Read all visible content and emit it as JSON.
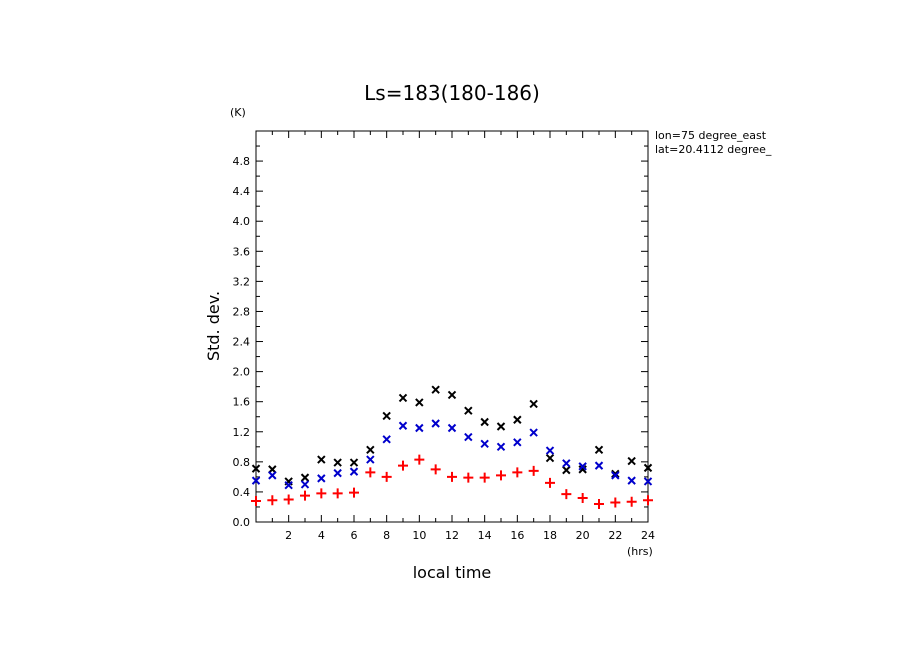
{
  "chart_data": {
    "type": "scatter",
    "title": "Ls=183(180-186)",
    "xlabel": "local time",
    "ylabel": "Std. dev.",
    "x_unit": "(hrs)",
    "y_unit": "(K)",
    "xlim": [
      0,
      24
    ],
    "ylim": [
      0,
      5.2
    ],
    "grid": false,
    "x_tick_labels": [
      "2",
      "4",
      "6",
      "8",
      "10",
      "12",
      "14",
      "16",
      "18",
      "20",
      "22",
      "24"
    ],
    "y_tick_labels": [
      "0.0",
      "0.4",
      "0.8",
      "1.2",
      "1.6",
      "2.0",
      "2.4",
      "2.8",
      "3.2",
      "3.6",
      "4.0",
      "4.4",
      "4.8"
    ],
    "annotations": [
      "lon=75 degree_east",
      "lat=20.4112 degree_"
    ],
    "x": [
      0,
      1,
      2,
      3,
      4,
      5,
      6,
      7,
      8,
      9,
      10,
      11,
      12,
      13,
      14,
      15,
      16,
      17,
      18,
      19,
      20,
      21,
      22,
      23,
      24
    ],
    "series": [
      {
        "color": "#000000",
        "marker": "x",
        "values": [
          0.71,
          0.7,
          0.54,
          0.59,
          0.83,
          0.79,
          0.79,
          0.96,
          1.41,
          1.65,
          1.59,
          1.76,
          1.69,
          1.48,
          1.33,
          1.27,
          1.36,
          1.57,
          0.85,
          0.69,
          0.7,
          0.96,
          0.64,
          0.81,
          0.72
        ]
      },
      {
        "color": "#0000cc",
        "marker": "x",
        "values": [
          0.55,
          0.62,
          0.49,
          0.5,
          0.58,
          0.65,
          0.67,
          0.83,
          1.1,
          1.28,
          1.25,
          1.31,
          1.25,
          1.13,
          1.04,
          1.0,
          1.06,
          1.19,
          0.95,
          0.78,
          0.74,
          0.75,
          0.62,
          0.55,
          0.54
        ]
      },
      {
        "color": "#ff0000",
        "marker": "+",
        "values": [
          0.28,
          0.29,
          0.3,
          0.35,
          0.38,
          0.38,
          0.39,
          0.66,
          0.6,
          0.75,
          0.83,
          0.7,
          0.6,
          0.59,
          0.59,
          0.62,
          0.66,
          0.68,
          0.52,
          0.37,
          0.32,
          0.24,
          0.26,
          0.27,
          0.29
        ]
      }
    ]
  }
}
